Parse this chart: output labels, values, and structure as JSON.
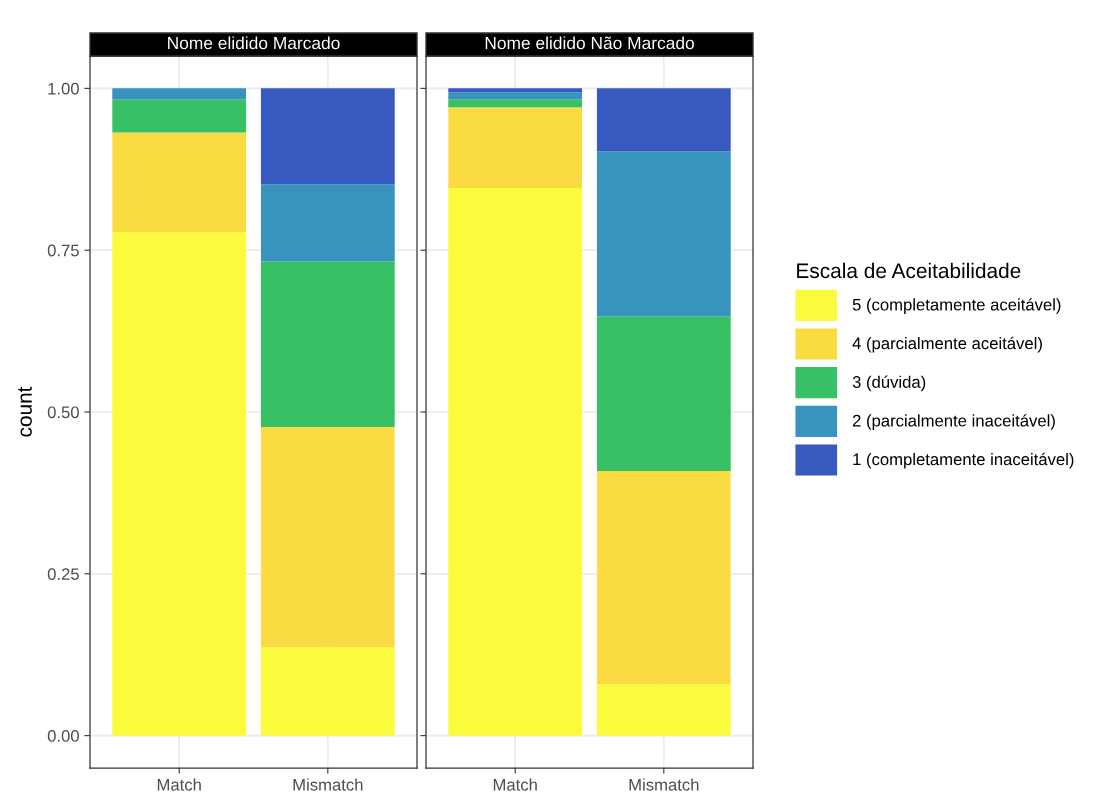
{
  "chart_data": [
    {
      "type": "bar",
      "title": "Nome elidido Marcado",
      "ylabel": "count",
      "categories": [
        "Match",
        "Mismatch"
      ],
      "stacked": true,
      "grid": true,
      "legend": false,
      "ylim": [
        -0.05,
        1.05
      ],
      "yticks": [
        {
          "value": 0,
          "label": "0.00"
        },
        {
          "value": 0.25,
          "label": "0.25"
        },
        {
          "value": 0.5,
          "label": "0.50"
        },
        {
          "value": 0.75,
          "label": "0.75"
        },
        {
          "value": 1,
          "label": "1.00"
        }
      ],
      "series": [
        {
          "color": "#fbfb3e",
          "values": [
            0.778,
            0.136
          ]
        },
        {
          "color": "#fbdb42",
          "values": [
            0.154,
            0.341
          ]
        },
        {
          "color": "#38c066",
          "values": [
            0.051,
            0.256
          ]
        },
        {
          "color": "#3993bf",
          "values": [
            0.017,
            0.119
          ]
        },
        {
          "color": "#3859c0",
          "values": [
            0,
            0.148
          ]
        }
      ]
    },
    {
      "type": "bar",
      "title": "Nome elidido Não Marcado",
      "categories": [
        "Match",
        "Mismatch"
      ],
      "stacked": true,
      "grid": true,
      "legend": "right",
      "legend_title": "Escala de Aceitabilidade",
      "tick_labels": "x",
      "ylim": [
        -0.05,
        1.05
      ],
      "yticks": [
        {
          "value": 0,
          "label": null
        },
        {
          "value": 0.25,
          "label": null
        },
        {
          "value": 0.5,
          "label": null
        },
        {
          "value": 0.75,
          "label": null
        },
        {
          "value": 1,
          "label": null
        }
      ],
      "series": [
        {
          "name": "5 (completamente aceitável)",
          "color": "#fbfb3e",
          "values": [
            0.846,
            0.079
          ]
        },
        {
          "name": "4 (parcialmente aceitável)",
          "color": "#fbdb42",
          "values": [
            0.125,
            0.33
          ]
        },
        {
          "name": "3 (dúvida)",
          "color": "#38c066",
          "values": [
            0.012,
            0.239
          ]
        },
        {
          "name": "2 (parcialmente inaceitável)",
          "color": "#3993bf",
          "values": [
            0.011,
            0.255
          ]
        },
        {
          "name": "1 (completamente inaceitável)",
          "color": "#3859c0",
          "values": [
            0.006,
            0.097
          ]
        }
      ]
    }
  ]
}
